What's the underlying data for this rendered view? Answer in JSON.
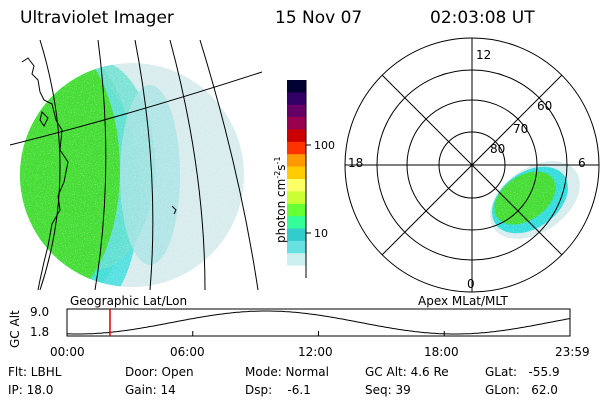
{
  "header": {
    "title": "Ultraviolet Imager",
    "date": "15 Nov 07",
    "time": "02:03:08 UT"
  },
  "geo_panel": {
    "label": "Geographic Lat/Lon"
  },
  "polar_panel": {
    "label": "Apex MLat/MLT",
    "mlt_labels": [
      "12",
      "18",
      "6",
      "0"
    ],
    "lat_labels": [
      "60",
      "70",
      "80"
    ]
  },
  "colorbar": {
    "unit_label": "photon cm",
    "unit_exp1": "-2",
    "unit_mid": "s",
    "unit_exp2": "-1",
    "ticks": [
      "100",
      "10"
    ],
    "colors": [
      "#000033",
      "#330066",
      "#660066",
      "#99004d",
      "#cc0000",
      "#ff3300",
      "#ff9900",
      "#ffcc00",
      "#ffff66",
      "#ccff33",
      "#66ff33",
      "#33ff99",
      "#33cccc",
      "#66e0e0",
      "#ccf0f0",
      "#ffffff"
    ]
  },
  "altitude_plot": {
    "ylabel": "GC Alt",
    "yticks": [
      "9.0",
      "1.8"
    ],
    "xticks": [
      "00:00",
      "06:00",
      "12:00",
      "18:00",
      "23:59"
    ],
    "marker_time_hours": 2.05
  },
  "status": {
    "flt": "Flt: LBHL",
    "ip": "IP: 18.0",
    "door": "Door: Open",
    "gain": "Gain: 14",
    "mode": "Mode: Normal",
    "dsp": "Dsp:    -6.1",
    "gcalt": "GC Alt: 4.6 Re",
    "seq": "Seq: 39",
    "glat": "GLat:   -55.9",
    "glon": "GLon:   62.0"
  },
  "colors": {
    "green": "#44dd33",
    "cyan": "#33dddd",
    "paleblue": "#d8ecee",
    "marker": "#dd0000"
  }
}
